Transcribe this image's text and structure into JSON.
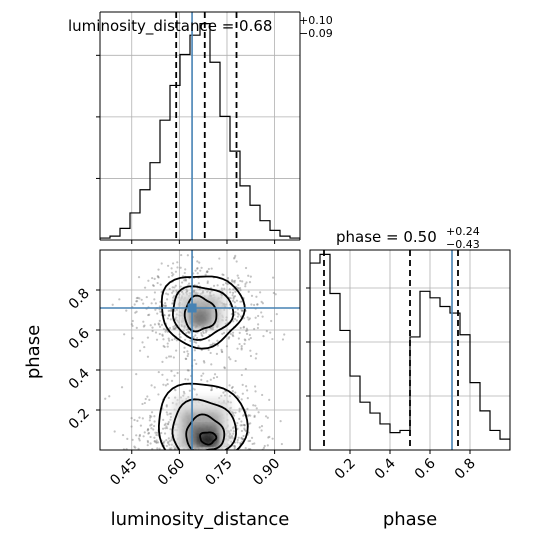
{
  "chart_data": [
    {
      "type": "histogram",
      "panel": "luminosity_distance marginal",
      "title": {
        "text": "luminosity_distance = 0.68",
        "upper": "+0.10",
        "lower": "−0.09"
      },
      "xlim": [
        0.35,
        0.98
      ],
      "bins": {
        "start": 0.35,
        "width": 0.0315,
        "heights": [
          1,
          2,
          6,
          14,
          26,
          40,
          62,
          80,
          96,
          106,
          112,
          92,
          64,
          46,
          28,
          18,
          10,
          5,
          2,
          1
        ]
      },
      "ymax": 118,
      "quantiles": [
        0.59,
        0.68,
        0.78
      ],
      "truth": 0.64,
      "grid": true
    },
    {
      "type": "contour",
      "panel": "luminosity_distance vs phase",
      "xlabel": "luminosity_distance",
      "ylabel": "phase",
      "xlim": [
        0.35,
        0.98
      ],
      "ylim": [
        0.0,
        1.0
      ],
      "xticks": [
        "0.45",
        "0.60",
        "0.75",
        "0.90"
      ],
      "xtick_values": [
        0.45,
        0.6,
        0.75,
        0.9
      ],
      "yticks": [
        "0.2",
        "0.4",
        "0.6",
        "0.8"
      ],
      "ytick_values": [
        0.2,
        0.4,
        0.6,
        0.8
      ],
      "truth": {
        "x": 0.64,
        "y": 0.71
      },
      "grid": true
    },
    {
      "type": "histogram",
      "panel": "phase marginal",
      "title": {
        "text": "phase = 0.50",
        "upper": "+0.24",
        "lower": "−0.43"
      },
      "xlabel": "phase",
      "xlim": [
        0.0,
        1.0
      ],
      "xticks": [
        "0.2",
        "0.4",
        "0.6",
        "0.8"
      ],
      "xtick_values": [
        0.2,
        0.4,
        0.6,
        0.8
      ],
      "bins": {
        "start": 0.0,
        "width": 0.05,
        "heights": [
          86,
          90,
          72,
          55,
          34,
          22,
          17,
          12,
          8,
          9,
          52,
          73,
          70,
          66,
          63,
          53,
          31,
          18,
          9,
          5
        ]
      },
      "ymax": 92,
      "quantiles": [
        0.07,
        0.5,
        0.74
      ],
      "truth": 0.71,
      "grid": true
    }
  ]
}
